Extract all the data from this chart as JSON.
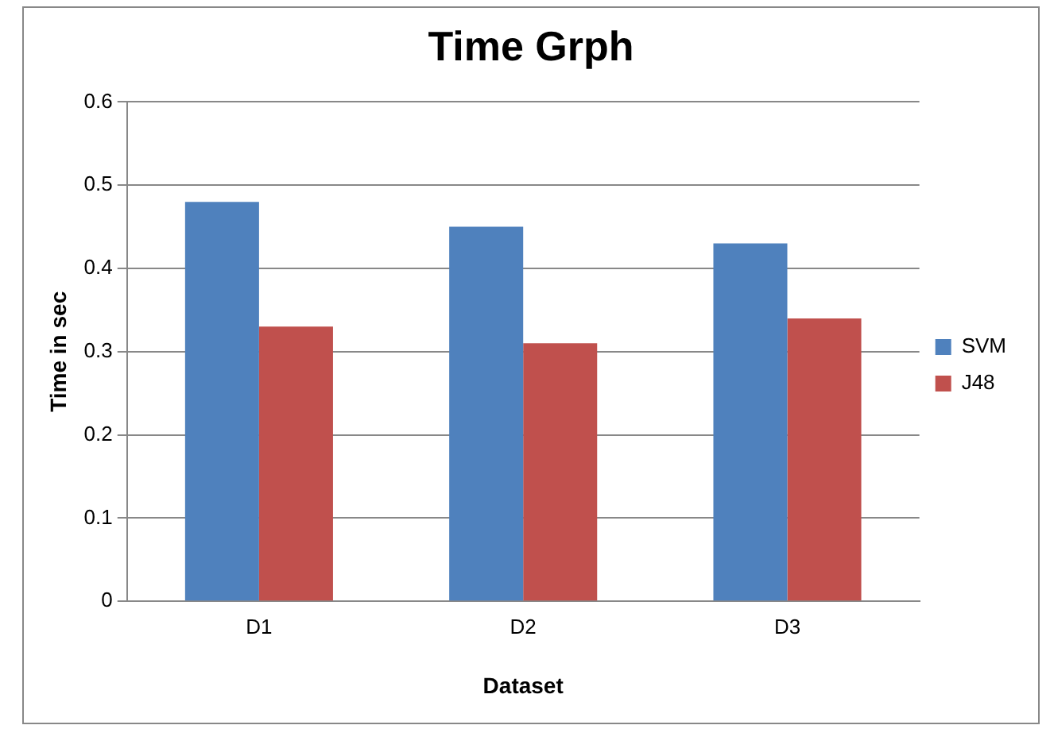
{
  "chart_data": {
    "type": "bar",
    "title": "Time Grph",
    "xlabel": "Dataset",
    "ylabel": "Time in sec",
    "categories": [
      "D1",
      "D2",
      "D3"
    ],
    "series": [
      {
        "name": "SVM",
        "color": "#4f81bd",
        "values": [
          0.48,
          0.45,
          0.43
        ]
      },
      {
        "name": "J48",
        "color": "#c0504d",
        "values": [
          0.33,
          0.31,
          0.34
        ]
      }
    ],
    "ylim": [
      0,
      0.6
    ],
    "yticks": [
      0,
      0.1,
      0.2,
      0.3,
      0.4,
      0.5,
      0.6
    ],
    "grid": "y",
    "legend": "right"
  }
}
